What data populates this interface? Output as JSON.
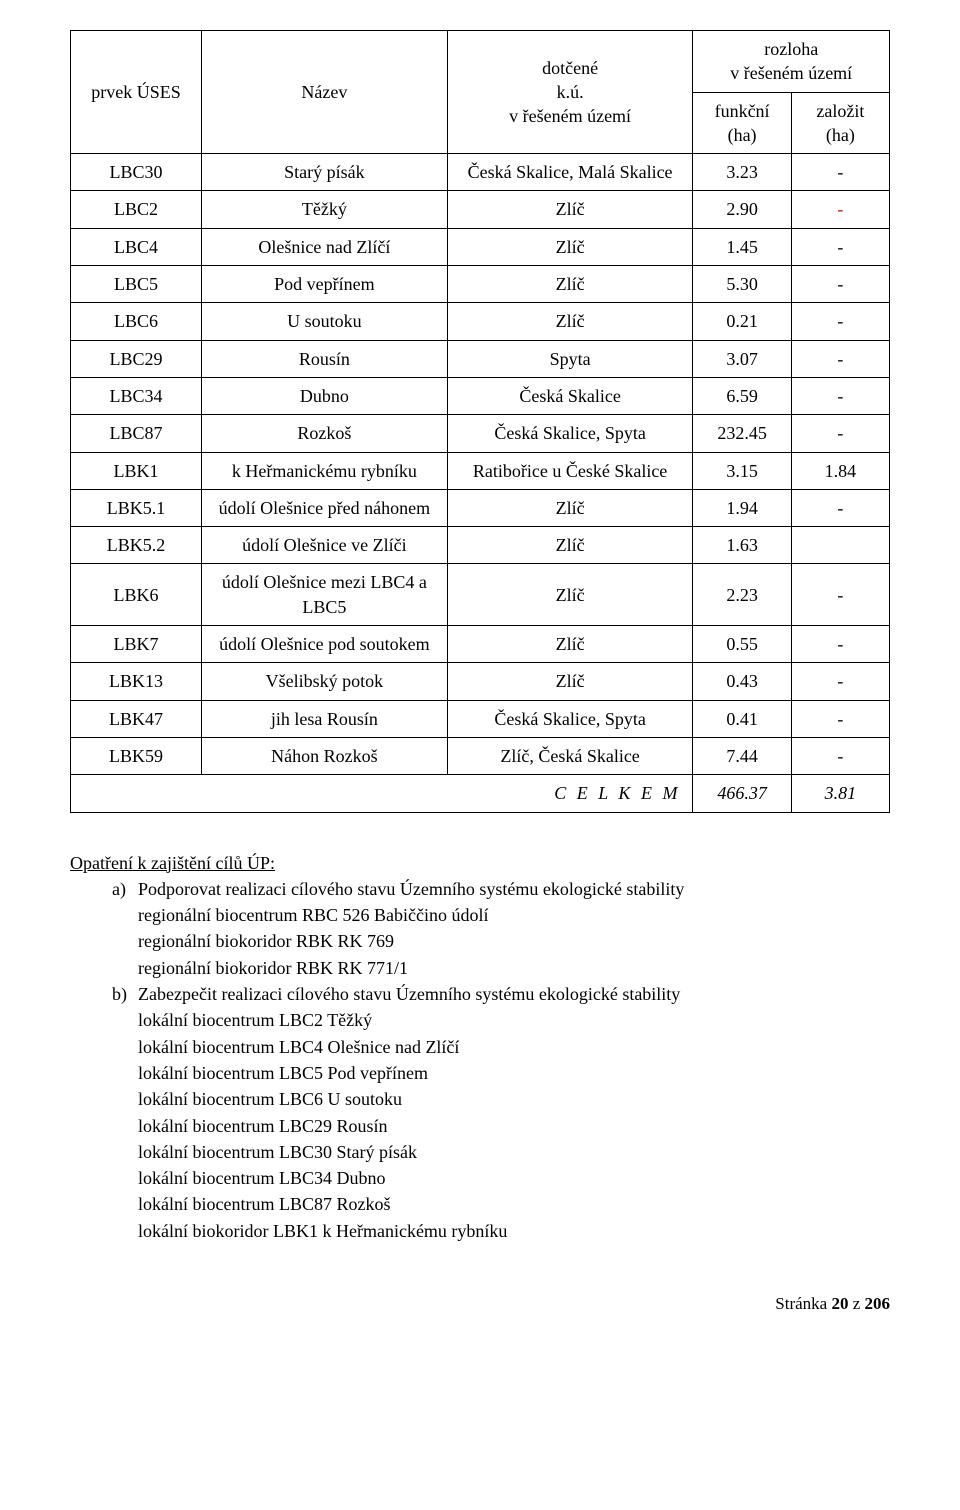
{
  "text_color": "#000000",
  "accent_color": "#d1120b",
  "background_color": "#ffffff",
  "border_color": "#000000",
  "font_family": "Times New Roman",
  "font_size_pt_body": 12,
  "table": {
    "columns_widths_pct": [
      16,
      30,
      30,
      12,
      12
    ],
    "headers": {
      "col1": "prvek ÚSES",
      "col2": "Název",
      "col3_line1": "dotčené",
      "col3_line2": "k.ú.",
      "col3_line3": "v řešeném území",
      "col45_top_line1": "rozloha",
      "col45_top_line2": "v řešeném území",
      "col4_line1": "funkční",
      "col4_line2": "(ha)",
      "col5_line1": "založit",
      "col5_line2": "(ha)"
    },
    "rows": [
      {
        "code": "LBC30",
        "name": "Starý písák",
        "dk": "Česká Skalice, Malá Skalice",
        "func": "3.23",
        "zal": "-",
        "zal_color": "#000000"
      },
      {
        "code": "LBC2",
        "name": "Těžký",
        "dk": "Zlíč",
        "func": "2.90",
        "zal": "-",
        "zal_color": "#d1120b"
      },
      {
        "code": "LBC4",
        "name": "Olešnice nad Zlíčí",
        "dk": "Zlíč",
        "func": "1.45",
        "zal": "-",
        "zal_color": "#000000"
      },
      {
        "code": "LBC5",
        "name": "Pod vepřínem",
        "dk": "Zlíč",
        "func": "5.30",
        "zal": "-",
        "zal_color": "#000000"
      },
      {
        "code": "LBC6",
        "name": "U soutoku",
        "dk": "Zlíč",
        "func": "0.21",
        "zal": "-",
        "zal_color": "#000000"
      },
      {
        "code": "LBC29",
        "name": "Rousín",
        "dk": "Spyta",
        "func": "3.07",
        "zal": "-",
        "zal_color": "#000000"
      },
      {
        "code": "LBC34",
        "name": "Dubno",
        "dk": "Česká Skalice",
        "func": "6.59",
        "zal": "-",
        "zal_color": "#000000"
      },
      {
        "code": "LBC87",
        "name": "Rozkoš",
        "dk": "Česká Skalice, Spyta",
        "func": "232.45",
        "zal": "-",
        "zal_color": "#000000"
      },
      {
        "code": "LBK1",
        "name": "k Heřmanickému rybníku",
        "dk": "Ratibořice u České Skalice",
        "func": "3.15",
        "zal": "1.84",
        "zal_color": "#000000"
      },
      {
        "code": "LBK5.1",
        "name": "údolí Olešnice před náhonem",
        "dk": "Zlíč",
        "func": "1.94",
        "zal": "-",
        "zal_color": "#000000"
      },
      {
        "code": "LBK5.2",
        "name": "údolí Olešnice ve Zlíči",
        "dk": "Zlíč",
        "func": "1.63",
        "zal": "",
        "zal_color": "#000000"
      },
      {
        "code": "LBK6",
        "name": "údolí Olešnice mezi LBC4 a LBC5",
        "dk": "Zlíč",
        "func": "2.23",
        "zal": "-",
        "zal_color": "#000000"
      },
      {
        "code": "LBK7",
        "name": "údolí Olešnice pod soutokem",
        "dk": "Zlíč",
        "func": "0.55",
        "zal": "-",
        "zal_color": "#000000"
      },
      {
        "code": "LBK13",
        "name": "Všelibský potok",
        "dk": "Zlíč",
        "func": "0.43",
        "zal": "-",
        "zal_color": "#000000"
      },
      {
        "code": "LBK47",
        "name": "jih lesa Rousín",
        "dk": "Česká Skalice, Spyta",
        "func": "0.41",
        "zal": "-",
        "zal_color": "#000000"
      },
      {
        "code": "LBK59",
        "name": "Náhon Rozkoš",
        "dk": "Zlíč, Česká Skalice",
        "func": "7.44",
        "zal": "-",
        "zal_color": "#000000"
      }
    ],
    "total": {
      "label": "C E L K E M",
      "func": "466.37",
      "zal": "3.81"
    }
  },
  "body_text": {
    "title": "Opatření k zajištění cílů ÚP:",
    "items": [
      {
        "marker": "a)",
        "text": "Podporovat realizaci cílového stavu Územního systému ekologické stability"
      },
      {
        "marker": "",
        "text": "regionální biocentrum RBC 526 Babiččino údolí",
        "sub": true
      },
      {
        "marker": "",
        "text": "regionální biokoridor RBK RK 769",
        "sub": true
      },
      {
        "marker": "",
        "text": "regionální biokoridor RBK RK 771/1",
        "sub": true
      },
      {
        "marker": "b)",
        "text": "Zabezpečit realizaci cílového stavu Územního systému ekologické stability"
      },
      {
        "marker": "",
        "text": "lokální biocentrum LBC2 Těžký",
        "sub": true
      },
      {
        "marker": "",
        "text": "lokální biocentrum LBC4 Olešnice nad Zlíčí",
        "sub": true
      },
      {
        "marker": "",
        "text": "lokální biocentrum LBC5 Pod vepřínem",
        "sub": true
      },
      {
        "marker": "",
        "text": "lokální biocentrum LBC6 U soutoku",
        "sub": true
      },
      {
        "marker": "",
        "text": "lokální biocentrum LBC29 Rousín",
        "sub": true
      },
      {
        "marker": "",
        "text": "lokální biocentrum LBC30 Starý písák",
        "sub": true
      },
      {
        "marker": "",
        "text": "lokální biocentrum LBC34 Dubno",
        "sub": true
      },
      {
        "marker": "",
        "text": "lokální biocentrum LBC87 Rozkoš",
        "sub": true
      },
      {
        "marker": "",
        "text": "lokální biokoridor LBK1 k Heřmanickému rybníku",
        "sub": true
      }
    ]
  },
  "footer": {
    "label_prefix": "Stránka ",
    "page": "20",
    "of_word": " z ",
    "total": "206"
  }
}
